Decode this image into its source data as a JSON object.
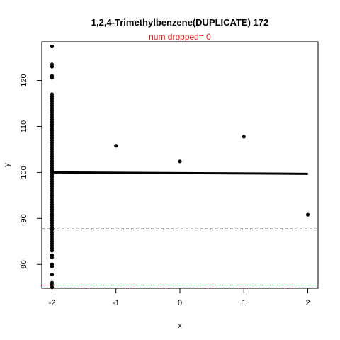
{
  "chart_data": {
    "type": "scatter",
    "title": "1,2,4-Trimethylbenzene(DUPLICATE) 172",
    "subtitle": "num dropped= 0",
    "xlabel": "x",
    "ylabel": "y",
    "xlim": [
      -2.16,
      2.16
    ],
    "ylim": [
      74.8,
      128.4
    ],
    "x_ticks": [
      -2,
      -1,
      0,
      1,
      2
    ],
    "x_tick_labels": [
      "-2",
      "-1",
      "0",
      "1",
      "2"
    ],
    "y_ticks": [
      80,
      90,
      100,
      110,
      120
    ],
    "y_tick_labels": [
      "80",
      "90",
      "100",
      "110",
      "120"
    ],
    "grid": false,
    "colors": {
      "points": "#000000",
      "fit_line": "#000000",
      "black_dashed": "#000000",
      "red_dashed": "#e31a1c",
      "subtitle": "#e31a1c"
    },
    "points": [
      {
        "x": -2,
        "y": 127.4
      },
      {
        "x": -2,
        "y": 123.5
      },
      {
        "x": -2,
        "y": 123.0
      },
      {
        "x": -2,
        "y": 121.0
      },
      {
        "x": -2,
        "y": 120.6
      },
      {
        "x": -2,
        "y": 117.0
      },
      {
        "x": -2,
        "y": 116.5
      },
      {
        "x": -2,
        "y": 116.0
      },
      {
        "x": -2,
        "y": 115.5
      },
      {
        "x": -2,
        "y": 115.0
      },
      {
        "x": -2,
        "y": 114.5
      },
      {
        "x": -2,
        "y": 114.0
      },
      {
        "x": -2,
        "y": 113.5
      },
      {
        "x": -2,
        "y": 113.0
      },
      {
        "x": -2,
        "y": 112.5
      },
      {
        "x": -2,
        "y": 112.0
      },
      {
        "x": -2,
        "y": 111.5
      },
      {
        "x": -2,
        "y": 111.0
      },
      {
        "x": -2,
        "y": 110.5
      },
      {
        "x": -2,
        "y": 110.0
      },
      {
        "x": -2,
        "y": 109.5
      },
      {
        "x": -2,
        "y": 109.0
      },
      {
        "x": -2,
        "y": 108.5
      },
      {
        "x": -2,
        "y": 108.0
      },
      {
        "x": -2,
        "y": 107.5
      },
      {
        "x": -2,
        "y": 107.0
      },
      {
        "x": -2,
        "y": 106.5
      },
      {
        "x": -2,
        "y": 106.0
      },
      {
        "x": -2,
        "y": 105.5
      },
      {
        "x": -2,
        "y": 105.0
      },
      {
        "x": -2,
        "y": 104.5
      },
      {
        "x": -2,
        "y": 104.0
      },
      {
        "x": -2,
        "y": 103.5
      },
      {
        "x": -2,
        "y": 103.0
      },
      {
        "x": -2,
        "y": 102.5
      },
      {
        "x": -2,
        "y": 102.0
      },
      {
        "x": -2,
        "y": 101.5
      },
      {
        "x": -2,
        "y": 101.0
      },
      {
        "x": -2,
        "y": 100.5
      },
      {
        "x": -2,
        "y": 100.0
      },
      {
        "x": -2,
        "y": 99.5
      },
      {
        "x": -2,
        "y": 99.0
      },
      {
        "x": -2,
        "y": 98.5
      },
      {
        "x": -2,
        "y": 98.0
      },
      {
        "x": -2,
        "y": 97.5
      },
      {
        "x": -2,
        "y": 97.0
      },
      {
        "x": -2,
        "y": 96.5
      },
      {
        "x": -2,
        "y": 96.0
      },
      {
        "x": -2,
        "y": 95.5
      },
      {
        "x": -2,
        "y": 95.0
      },
      {
        "x": -2,
        "y": 94.5
      },
      {
        "x": -2,
        "y": 94.0
      },
      {
        "x": -2,
        "y": 93.5
      },
      {
        "x": -2,
        "y": 93.0
      },
      {
        "x": -2,
        "y": 92.5
      },
      {
        "x": -2,
        "y": 92.0
      },
      {
        "x": -2,
        "y": 91.5
      },
      {
        "x": -2,
        "y": 91.0
      },
      {
        "x": -2,
        "y": 90.5
      },
      {
        "x": -2,
        "y": 90.0
      },
      {
        "x": -2,
        "y": 89.5
      },
      {
        "x": -2,
        "y": 89.0
      },
      {
        "x": -2,
        "y": 88.5
      },
      {
        "x": -2,
        "y": 88.0
      },
      {
        "x": -2,
        "y": 87.5
      },
      {
        "x": -2,
        "y": 87.0
      },
      {
        "x": -2,
        "y": 86.5
      },
      {
        "x": -2,
        "y": 86.0
      },
      {
        "x": -2,
        "y": 85.5
      },
      {
        "x": -2,
        "y": 85.0
      },
      {
        "x": -2,
        "y": 84.5
      },
      {
        "x": -2,
        "y": 84.0
      },
      {
        "x": -2,
        "y": 83.5
      },
      {
        "x": -2,
        "y": 83.0
      },
      {
        "x": -2,
        "y": 82.0
      },
      {
        "x": -2,
        "y": 81.5
      },
      {
        "x": -2,
        "y": 80.0
      },
      {
        "x": -2,
        "y": 79.5
      },
      {
        "x": -2,
        "y": 77.8
      },
      {
        "x": -2,
        "y": 76.0
      },
      {
        "x": -2,
        "y": 75.5
      },
      {
        "x": -2,
        "y": 75.0
      },
      {
        "x": -1,
        "y": 105.8
      },
      {
        "x": 0,
        "y": 102.4
      },
      {
        "x": 1,
        "y": 107.8
      },
      {
        "x": 2,
        "y": 90.8
      }
    ],
    "fit_line": [
      {
        "x": -2,
        "y": 100.0
      },
      {
        "x": 2,
        "y": 99.7
      }
    ],
    "reference_lines": [
      {
        "y": 87.7,
        "style": "dashed",
        "color": "#000000"
      },
      {
        "y": 75.5,
        "style": "dashed",
        "color": "#e31a1c"
      }
    ]
  }
}
